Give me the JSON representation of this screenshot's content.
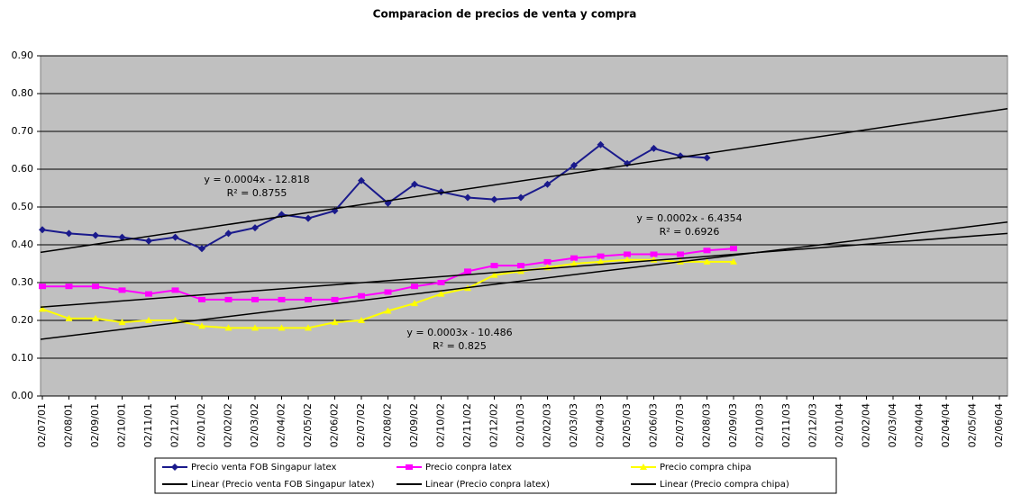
{
  "chart_data": {
    "type": "line",
    "title": "Comparacion de precios de venta y compra",
    "categories": [
      "02/07/01",
      "02/08/01",
      "02/09/01",
      "02/10/01",
      "02/11/01",
      "02/12/01",
      "02/01/02",
      "02/02/02",
      "02/03/02",
      "02/04/02",
      "02/05/02",
      "02/06/02",
      "02/07/02",
      "02/08/02",
      "02/09/02",
      "02/10/02",
      "02/11/02",
      "02/12/02",
      "02/01/03",
      "02/02/03",
      "02/03/03",
      "02/04/03",
      "02/05/03",
      "02/06/03",
      "02/07/03",
      "02/08/03",
      "02/09/03",
      "02/10/03",
      "02/11/03",
      "02/12/03",
      "02/01/04",
      "02/02/04",
      "02/03/04",
      "02/04/04",
      "02/04/04",
      "02/05/04",
      "02/06/04"
    ],
    "series": [
      {
        "name": "Precio venta FOB Singapur latex",
        "color": "#1a1a8c",
        "marker": "diamond",
        "values": [
          0.44,
          0.43,
          0.425,
          0.42,
          0.41,
          0.42,
          0.39,
          0.43,
          0.445,
          0.48,
          0.47,
          0.49,
          0.57,
          0.51,
          0.56,
          0.54,
          0.525,
          0.52,
          0.525,
          0.56,
          0.61,
          0.665,
          0.615,
          0.655,
          0.635,
          0.63,
          null,
          null,
          null,
          null,
          null,
          null,
          null,
          null,
          null,
          null,
          null
        ]
      },
      {
        "name": "Precio conpra latex",
        "color": "#ff00ff",
        "marker": "square",
        "values": [
          0.29,
          0.29,
          0.29,
          0.28,
          0.27,
          0.28,
          0.255,
          0.255,
          0.255,
          0.255,
          0.255,
          0.255,
          0.265,
          0.275,
          0.29,
          0.3,
          0.33,
          0.345,
          0.345,
          0.355,
          0.365,
          0.37,
          0.375,
          0.375,
          0.375,
          0.385,
          0.39,
          null,
          null,
          null,
          null,
          null,
          null,
          null,
          null,
          null,
          null
        ]
      },
      {
        "name": "Precio compra chipa",
        "color": "#ffff00",
        "marker": "triangle",
        "values": [
          0.23,
          0.205,
          0.205,
          0.195,
          0.2,
          0.2,
          0.185,
          0.18,
          0.18,
          0.18,
          0.18,
          0.195,
          0.2,
          0.225,
          0.245,
          0.27,
          0.285,
          0.32,
          0.33,
          0.34,
          0.35,
          0.355,
          0.36,
          0.36,
          0.355,
          0.355,
          0.355,
          null,
          null,
          null,
          null,
          null,
          null,
          null,
          null,
          null,
          null
        ]
      }
    ],
    "trendlines": [
      {
        "name": "Linear (Precio venta FOB Singapur latex)",
        "color": "#000000",
        "start": 0.38,
        "end": 0.76,
        "equation": "y = 0.0004x - 12.818",
        "r2": "R² = 0.8755"
      },
      {
        "name": "Linear (Precio conpra latex)",
        "color": "#000000",
        "start": 0.235,
        "end": 0.43,
        "equation": "y = 0.0002x - 6.4354",
        "r2": "R² = 0.6926"
      },
      {
        "name": "Linear (Precio compra chipa)",
        "color": "#000000",
        "start": 0.15,
        "end": 0.46,
        "equation": "y = 0.0003x - 10.486",
        "r2": "R² = 0.825"
      }
    ],
    "ylim": [
      0,
      0.9
    ],
    "yticks": [
      {
        "value": 0,
        "label": "0.00"
      },
      {
        "value": 0.1,
        "label": "0.10"
      },
      {
        "value": 0.2,
        "label": "0.20"
      },
      {
        "value": 0.3,
        "label": "0.30"
      },
      {
        "value": 0.4,
        "label": "0.40"
      },
      {
        "value": 0.5,
        "label": "0.50"
      },
      {
        "value": 0.6,
        "label": "0.60"
      },
      {
        "value": 0.7,
        "label": "0.70"
      },
      {
        "value": 0.8,
        "label": "0.80"
      },
      {
        "value": 0.9,
        "label": "0.90"
      }
    ],
    "grid": true
  }
}
